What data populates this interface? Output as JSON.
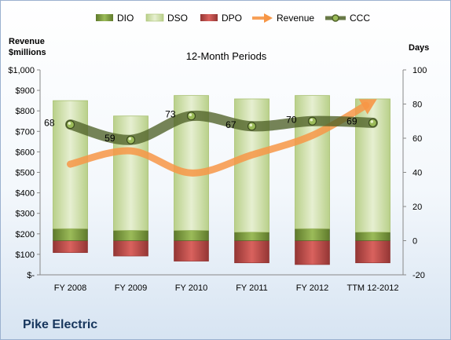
{
  "chart_data": {
    "type": "bar",
    "title": "12-Month Periods",
    "left_axis": {
      "label_line1": "Revenue",
      "label_line2": "$millions",
      "range": [
        0,
        1000
      ],
      "ticks": [
        0,
        100,
        200,
        300,
        400,
        500,
        600,
        700,
        800,
        900,
        1000
      ],
      "tick_labels": [
        "$-",
        "$100",
        "$200",
        "$300",
        "$400",
        "$500",
        "$600",
        "$700",
        "$800",
        "$900",
        "$1,000"
      ]
    },
    "right_axis": {
      "label": "Days",
      "range": [
        -20,
        100
      ],
      "ticks": [
        -20,
        0,
        20,
        40,
        60,
        80,
        100
      ],
      "tick_labels": [
        "-20",
        "0",
        "20",
        "40",
        "60",
        "80",
        "100"
      ]
    },
    "categories": [
      "FY 2008",
      "FY 2009",
      "FY 2010",
      "FY 2011",
      "FY 2012",
      "TTM 12-2012"
    ],
    "series": [
      {
        "name": "DIO",
        "axis": "right",
        "kind": "stacked-bar",
        "color": "#77933c",
        "values": [
          7,
          6,
          6,
          5,
          7,
          5
        ]
      },
      {
        "name": "DSO",
        "axis": "right",
        "kind": "stacked-bar",
        "color": "#d7e4bd",
        "values": [
          75,
          67,
          79,
          78,
          78,
          78
        ]
      },
      {
        "name": "DPO",
        "axis": "right",
        "kind": "negative-bar",
        "color": "#c0504d",
        "values": [
          -7,
          -9,
          -12,
          -13,
          -14,
          -13
        ]
      },
      {
        "name": "Revenue",
        "axis": "left",
        "kind": "arrow-line",
        "color": "#f79646",
        "values": [
          540,
          605,
          497,
          585,
          680,
          846
        ]
      },
      {
        "name": "CCC",
        "axis": "right",
        "kind": "line",
        "color": "#4f6228",
        "values": [
          68,
          59,
          73,
          67,
          70,
          69
        ]
      }
    ],
    "ccc_labels": [
      "68",
      "59",
      "73",
      "67",
      "70",
      "69"
    ],
    "legend_position": "top",
    "grid": false
  },
  "company_name": "Pike Electric"
}
